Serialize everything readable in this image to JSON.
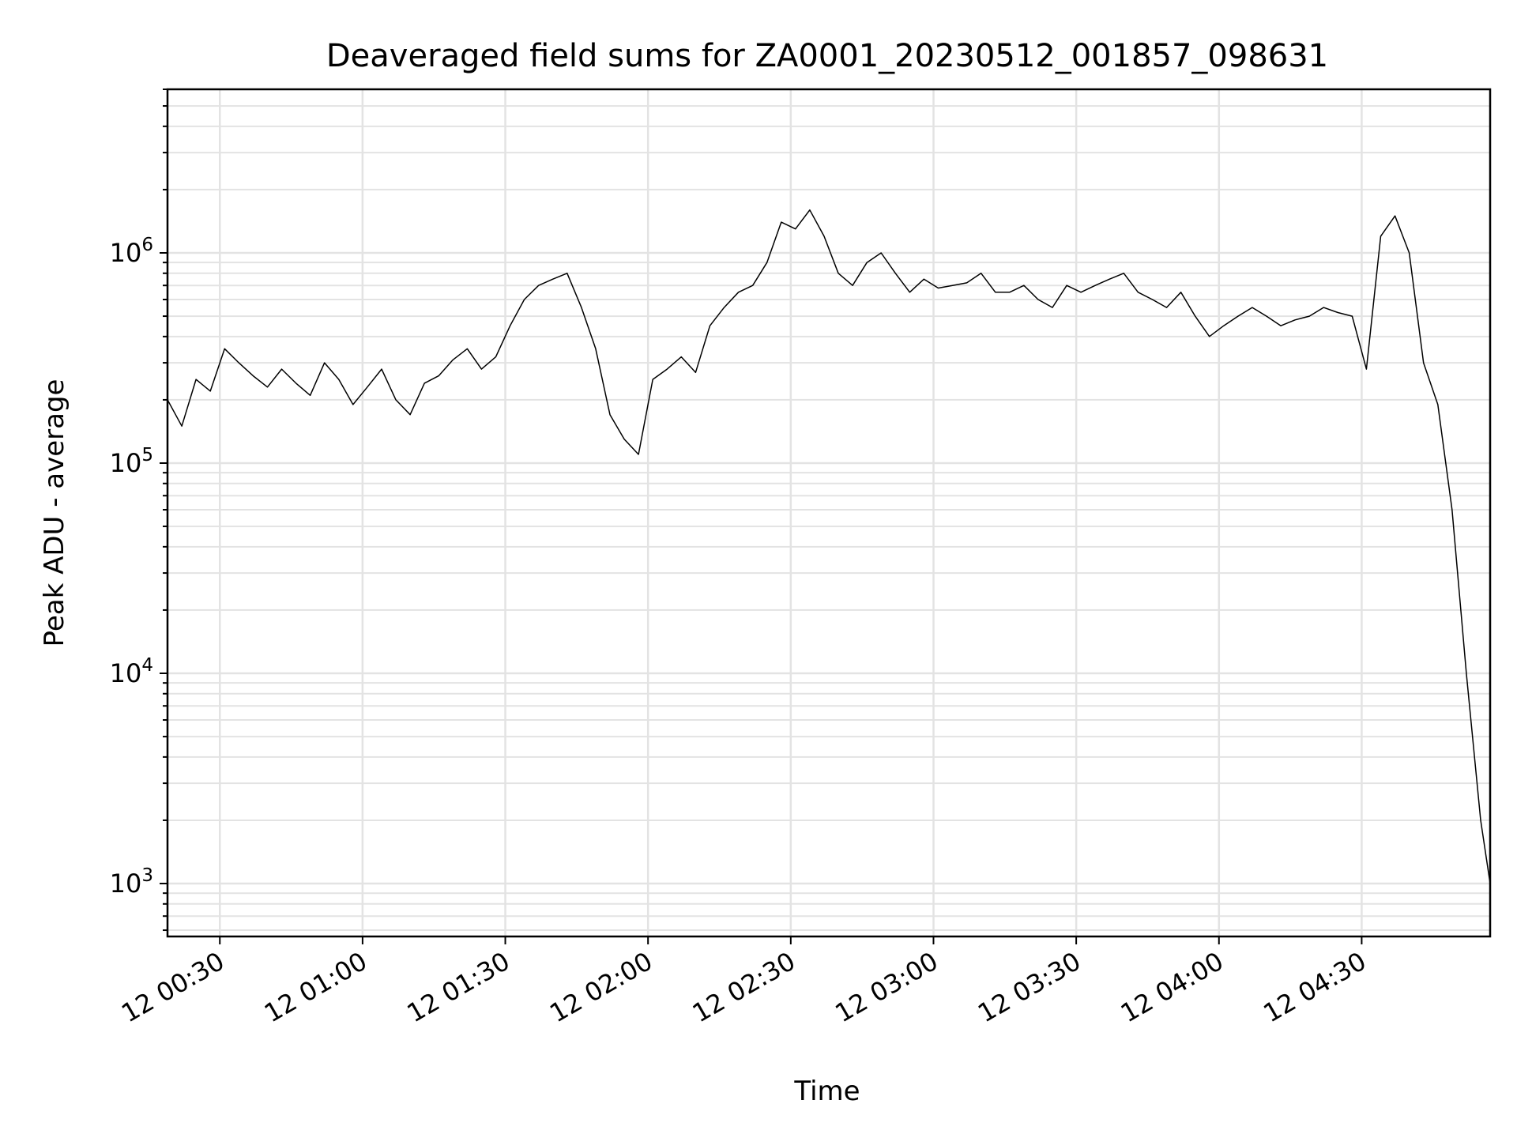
{
  "chart_data": {
    "type": "line",
    "title": "Deaveraged field sums for ZA0001_20230512_001857_098631",
    "xlabel": "Time",
    "ylabel": "Peak ADU - average",
    "y_scale": "log",
    "ylim": [
      560,
      6000000
    ],
    "xlim": [
      "2023-05-12 00:19:00",
      "2023-05-12 04:57:00"
    ],
    "grid": true,
    "line_color": "#000000",
    "grid_color": "#e3e3e3",
    "x_ticks": [
      {
        "time": "2023-05-12 00:30:00",
        "label": "12 00:30"
      },
      {
        "time": "2023-05-12 01:00:00",
        "label": "12 01:00"
      },
      {
        "time": "2023-05-12 01:30:00",
        "label": "12 01:30"
      },
      {
        "time": "2023-05-12 02:00:00",
        "label": "12 02:00"
      },
      {
        "time": "2023-05-12 02:30:00",
        "label": "12 02:30"
      },
      {
        "time": "2023-05-12 03:00:00",
        "label": "12 03:00"
      },
      {
        "time": "2023-05-12 03:30:00",
        "label": "12 03:30"
      },
      {
        "time": "2023-05-12 04:00:00",
        "label": "12 04:00"
      },
      {
        "time": "2023-05-12 04:30:00",
        "label": "12 04:30"
      }
    ],
    "y_ticks": [
      {
        "value": 1000,
        "exp": "3"
      },
      {
        "value": 10000,
        "exp": "4"
      },
      {
        "value": 100000,
        "exp": "5"
      },
      {
        "value": 1000000,
        "exp": "6"
      }
    ],
    "series": [
      {
        "x": [
          "2023-05-12 00:19:00",
          "2023-05-12 00:22:00",
          "2023-05-12 00:25:00",
          "2023-05-12 00:28:00",
          "2023-05-12 00:31:00",
          "2023-05-12 00:34:00",
          "2023-05-12 00:37:00",
          "2023-05-12 00:40:00",
          "2023-05-12 00:43:00",
          "2023-05-12 00:46:00",
          "2023-05-12 00:49:00",
          "2023-05-12 00:52:00",
          "2023-05-12 00:55:00",
          "2023-05-12 00:58:00",
          "2023-05-12 01:01:00",
          "2023-05-12 01:04:00",
          "2023-05-12 01:07:00",
          "2023-05-12 01:10:00",
          "2023-05-12 01:13:00",
          "2023-05-12 01:16:00",
          "2023-05-12 01:19:00",
          "2023-05-12 01:22:00",
          "2023-05-12 01:25:00",
          "2023-05-12 01:28:00",
          "2023-05-12 01:31:00",
          "2023-05-12 01:34:00",
          "2023-05-12 01:37:00",
          "2023-05-12 01:40:00",
          "2023-05-12 01:43:00",
          "2023-05-12 01:46:00",
          "2023-05-12 01:49:00",
          "2023-05-12 01:52:00",
          "2023-05-12 01:55:00",
          "2023-05-12 01:58:00",
          "2023-05-12 02:01:00",
          "2023-05-12 02:04:00",
          "2023-05-12 02:07:00",
          "2023-05-12 02:10:00",
          "2023-05-12 02:13:00",
          "2023-05-12 02:16:00",
          "2023-05-12 02:19:00",
          "2023-05-12 02:22:00",
          "2023-05-12 02:25:00",
          "2023-05-12 02:28:00",
          "2023-05-12 02:31:00",
          "2023-05-12 02:34:00",
          "2023-05-12 02:37:00",
          "2023-05-12 02:40:00",
          "2023-05-12 02:43:00",
          "2023-05-12 02:46:00",
          "2023-05-12 02:49:00",
          "2023-05-12 02:52:00",
          "2023-05-12 02:55:00",
          "2023-05-12 02:58:00",
          "2023-05-12 03:01:00",
          "2023-05-12 03:04:00",
          "2023-05-12 03:07:00",
          "2023-05-12 03:10:00",
          "2023-05-12 03:13:00",
          "2023-05-12 03:16:00",
          "2023-05-12 03:19:00",
          "2023-05-12 03:22:00",
          "2023-05-12 03:25:00",
          "2023-05-12 03:28:00",
          "2023-05-12 03:31:00",
          "2023-05-12 03:34:00",
          "2023-05-12 03:37:00",
          "2023-05-12 03:40:00",
          "2023-05-12 03:43:00",
          "2023-05-12 03:46:00",
          "2023-05-12 03:49:00",
          "2023-05-12 03:52:00",
          "2023-05-12 03:55:00",
          "2023-05-12 03:58:00",
          "2023-05-12 04:01:00",
          "2023-05-12 04:04:00",
          "2023-05-12 04:07:00",
          "2023-05-12 04:10:00",
          "2023-05-12 04:13:00",
          "2023-05-12 04:16:00",
          "2023-05-12 04:19:00",
          "2023-05-12 04:22:00",
          "2023-05-12 04:25:00",
          "2023-05-12 04:28:00",
          "2023-05-12 04:31:00",
          "2023-05-12 04:34:00",
          "2023-05-12 04:37:00",
          "2023-05-12 04:40:00",
          "2023-05-12 04:43:00",
          "2023-05-12 04:46:00",
          "2023-05-12 04:49:00",
          "2023-05-12 04:52:00",
          "2023-05-12 04:55:00",
          "2023-05-12 04:57:00"
        ],
        "y": [
          200000,
          150000,
          250000,
          220000,
          350000,
          300000,
          260000,
          230000,
          280000,
          240000,
          210000,
          300000,
          250000,
          190000,
          230000,
          280000,
          200000,
          170000,
          240000,
          260000,
          310000,
          350000,
          280000,
          320000,
          450000,
          600000,
          700000,
          750000,
          800000,
          550000,
          350000,
          170000,
          130000,
          110000,
          250000,
          280000,
          320000,
          270000,
          450000,
          550000,
          650000,
          700000,
          900000,
          1400000,
          1300000,
          1600000,
          1200000,
          800000,
          700000,
          900000,
          1000000,
          800000,
          650000,
          750000,
          680000,
          700000,
          720000,
          800000,
          650000,
          650000,
          700000,
          600000,
          550000,
          700000,
          650000,
          700000,
          750000,
          800000,
          650000,
          600000,
          550000,
          650000,
          500000,
          400000,
          450000,
          500000,
          550000,
          500000,
          450000,
          480000,
          500000,
          550000,
          520000,
          500000,
          280000,
          1200000,
          1500000,
          1000000,
          300000,
          190000,
          60000,
          10000,
          2000,
          1000
        ]
      }
    ]
  }
}
